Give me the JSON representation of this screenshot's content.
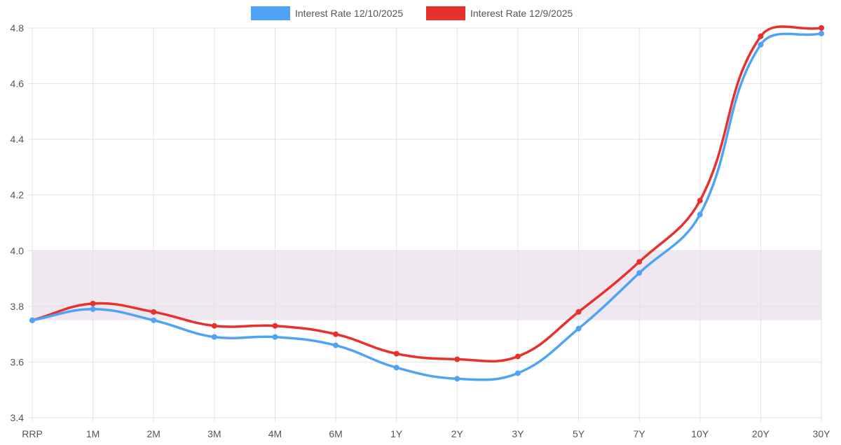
{
  "chart_data": {
    "type": "line",
    "categories": [
      "RRP",
      "1M",
      "2M",
      "3M",
      "4M",
      "6M",
      "1Y",
      "2Y",
      "3Y",
      "5Y",
      "7Y",
      "10Y",
      "20Y",
      "30Y"
    ],
    "series": [
      {
        "name": "Interest Rate 12/10/2025",
        "color": "#4fa3f7",
        "values": [
          3.75,
          3.79,
          3.75,
          3.69,
          3.69,
          3.66,
          3.58,
          3.54,
          3.56,
          3.72,
          3.92,
          4.13,
          4.74,
          4.78
        ]
      },
      {
        "name": "Interest Rate 12/9/2025",
        "color": "#e8302c",
        "values": [
          3.75,
          3.81,
          3.78,
          3.73,
          3.73,
          3.7,
          3.63,
          3.61,
          3.62,
          3.78,
          3.96,
          4.18,
          4.77,
          4.8
        ]
      }
    ],
    "ylim": [
      3.4,
      4.8
    ],
    "yticks": [
      "3.4",
      "3.6",
      "3.8",
      "4.0",
      "4.2",
      "4.4",
      "4.6",
      "4.8"
    ],
    "shaded_band": {
      "from": 3.75,
      "to": 4.0,
      "color": "#efe8f0"
    },
    "grid": true,
    "legend": "top"
  }
}
